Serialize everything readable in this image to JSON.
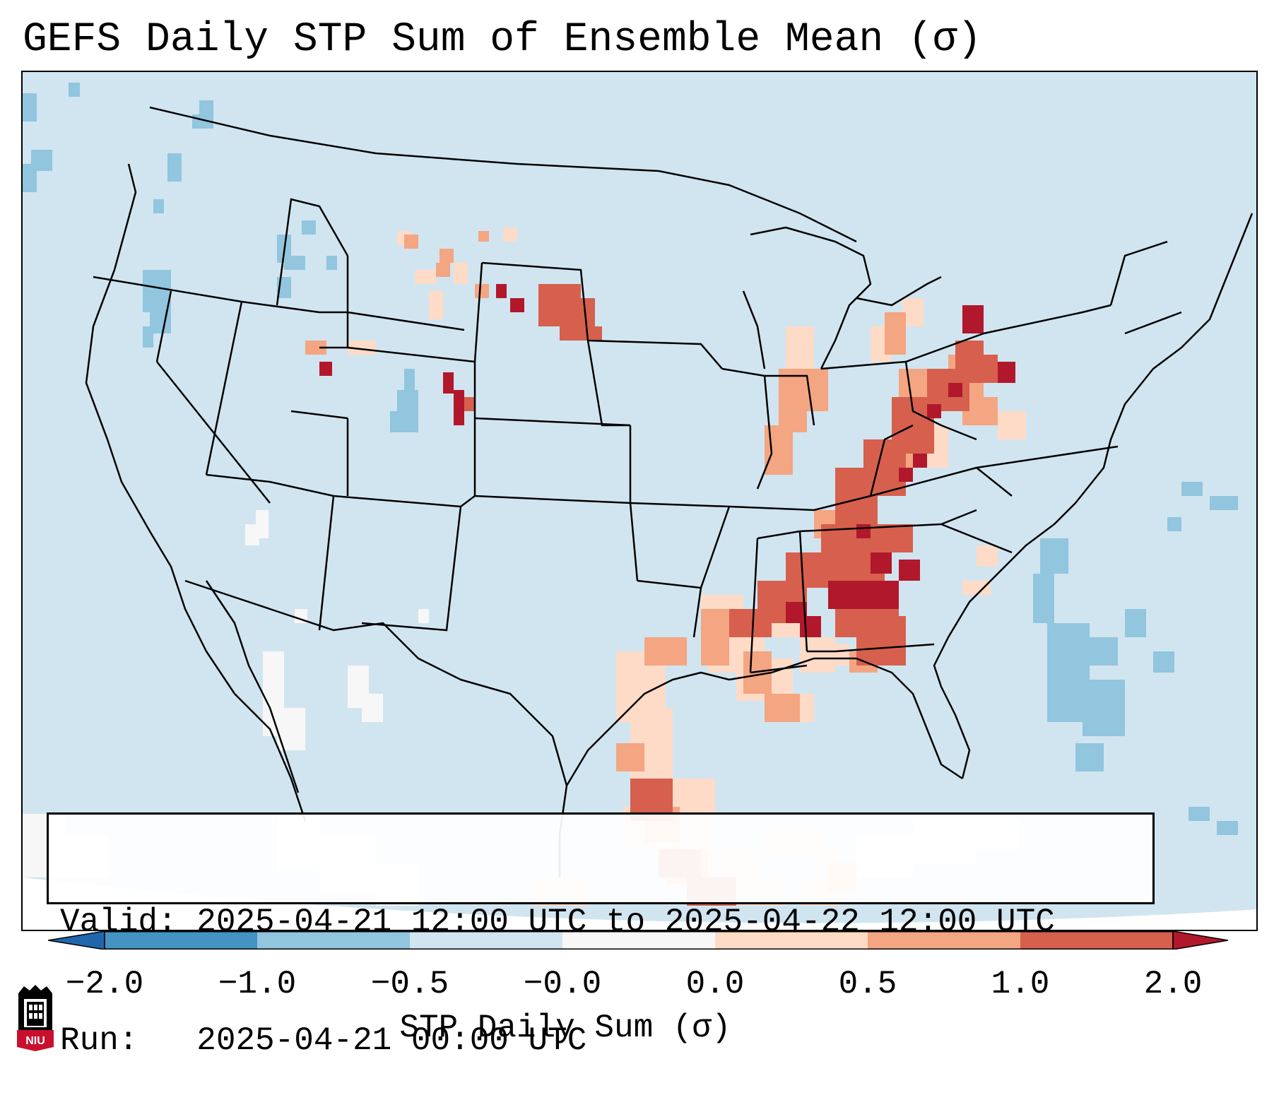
{
  "title": "GEFS Daily STP Sum of Ensemble Mean (σ)",
  "info_box": {
    "valid_line": "Valid: 2025-04-21 12:00 UTC to 2025-04-22 12:00 UTC",
    "run_line": "Run:   2025-04-21 00:00 UTC"
  },
  "colorbar": {
    "label": "STP Daily Sum (σ)",
    "tick_labels": [
      "−2.0",
      "−1.0",
      "−0.5",
      "−0.0",
      "0.0",
      "0.5",
      "1.0",
      "2.0"
    ],
    "bins": [
      {
        "range": "< -2.0",
        "color": "#2166ac"
      },
      {
        "range": "-2.0 to -1.0",
        "color": "#4393c3"
      },
      {
        "range": "-1.0 to -0.5",
        "color": "#92c5de"
      },
      {
        "range": "-0.5 to -0.0",
        "color": "#d1e5f0"
      },
      {
        "range": "-0.0 to 0.0",
        "color": "#f7f7f7"
      },
      {
        "range": "0.0 to 0.5",
        "color": "#fddbc7"
      },
      {
        "range": "0.5 to 1.0",
        "color": "#f4a582"
      },
      {
        "range": "1.0 to 2.0",
        "color": "#d6604d"
      },
      {
        "range": "> 2.0",
        "color": "#b2182b"
      }
    ]
  },
  "colors": {
    "background_field": "#d1e5f0",
    "outside_domain": "#ffffff",
    "borders": "#000000"
  },
  "map_features": {
    "region": "Contiguous United States",
    "max_values_region": "Lower Mississippi Valley to Ohio Valley and eastern Great Lakes",
    "secondary_max_region": "Western South Dakota and Colorado Front Range"
  },
  "logo": {
    "text": "NIU",
    "primary_color": "#c8102e",
    "secondary_color": "#000000"
  }
}
